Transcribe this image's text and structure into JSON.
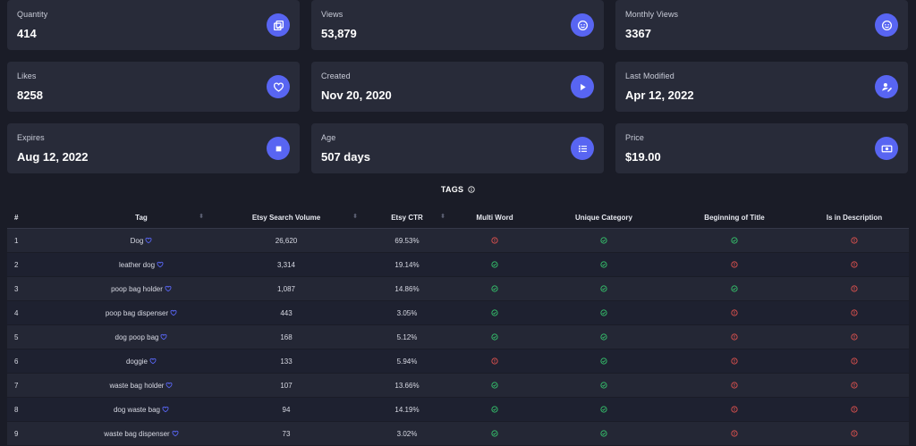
{
  "colors": {
    "accent": "#5865f2",
    "success": "#36c46d",
    "danger": "#e0524f"
  },
  "stats": [
    {
      "label": "Quantity",
      "value": "414",
      "icon": "copy-icon"
    },
    {
      "label": "Views",
      "value": "53,879",
      "icon": "smile-icon"
    },
    {
      "label": "Monthly Views",
      "value": "3367",
      "icon": "smile-icon"
    },
    {
      "label": "Likes",
      "value": "8258",
      "icon": "heart-icon"
    },
    {
      "label": "Created",
      "value": "Nov 20, 2020",
      "icon": "play-icon"
    },
    {
      "label": "Last Modified",
      "value": "Apr 12, 2022",
      "icon": "user-edit-icon"
    },
    {
      "label": "Expires",
      "value": "Aug 12, 2022",
      "icon": "stop-icon"
    },
    {
      "label": "Age",
      "value": "507 days",
      "icon": "list-icon"
    },
    {
      "label": "Price",
      "value": "$19.00",
      "icon": "money-icon"
    }
  ],
  "tags": {
    "title": "TAGS",
    "columns": [
      "#",
      "Tag",
      "Etsy Search Volume",
      "Etsy CTR",
      "Multi Word",
      "Unique Category",
      "Beginning of Title",
      "Is in Description"
    ],
    "rows": [
      {
        "n": "1",
        "tag": "Dog",
        "volume": "26,620",
        "ctr": "69.53%",
        "multi": false,
        "unique": true,
        "begin": true,
        "desc": false
      },
      {
        "n": "2",
        "tag": "leather dog",
        "volume": "3,314",
        "ctr": "19.14%",
        "multi": true,
        "unique": true,
        "begin": false,
        "desc": false
      },
      {
        "n": "3",
        "tag": "poop bag holder",
        "volume": "1,087",
        "ctr": "14.86%",
        "multi": true,
        "unique": true,
        "begin": true,
        "desc": false
      },
      {
        "n": "4",
        "tag": "poop bag dispenser",
        "volume": "443",
        "ctr": "3.05%",
        "multi": true,
        "unique": true,
        "begin": false,
        "desc": false
      },
      {
        "n": "5",
        "tag": "dog poop bag",
        "volume": "168",
        "ctr": "5.12%",
        "multi": true,
        "unique": true,
        "begin": false,
        "desc": false
      },
      {
        "n": "6",
        "tag": "doggie",
        "volume": "133",
        "ctr": "5.94%",
        "multi": false,
        "unique": true,
        "begin": false,
        "desc": false
      },
      {
        "n": "7",
        "tag": "waste bag holder",
        "volume": "107",
        "ctr": "13.66%",
        "multi": true,
        "unique": true,
        "begin": false,
        "desc": false
      },
      {
        "n": "8",
        "tag": "dog waste bag",
        "volume": "94",
        "ctr": "14.19%",
        "multi": true,
        "unique": true,
        "begin": false,
        "desc": false
      },
      {
        "n": "9",
        "tag": "waste bag dispenser",
        "volume": "73",
        "ctr": "3.02%",
        "multi": true,
        "unique": true,
        "begin": false,
        "desc": false
      }
    ]
  }
}
